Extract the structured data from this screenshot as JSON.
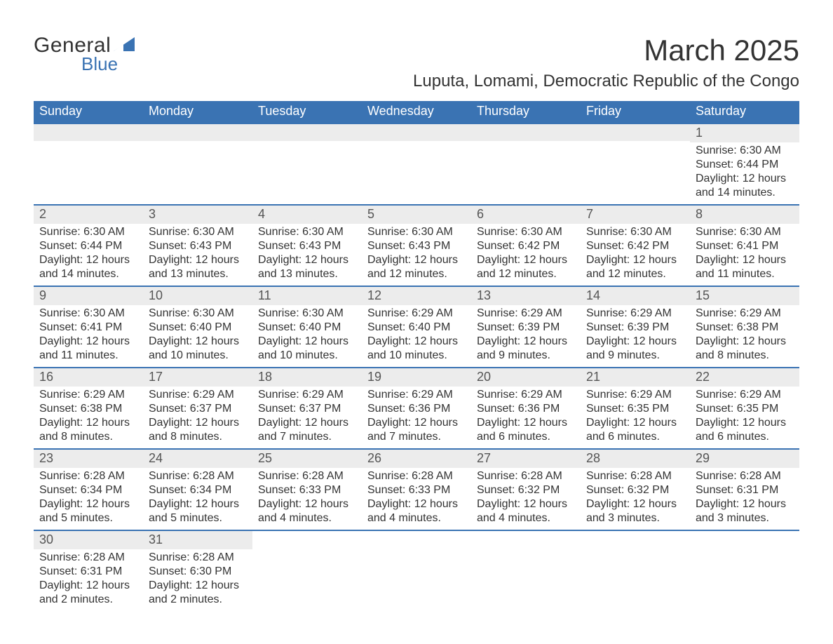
{
  "brand": {
    "word1": "General",
    "word2": "Blue",
    "accent_color": "#3a73b3",
    "text_color": "#333333"
  },
  "header": {
    "month_title": "March 2025",
    "location": "Luputa, Lomami, Democratic Republic of the Congo"
  },
  "calendar": {
    "header_bg": "#3a73b3",
    "header_text_color": "#ffffff",
    "row_border_color": "#3a73b3",
    "daynum_bg": "#ececec",
    "body_bg": "#ffffff",
    "text_color": "#333333",
    "weekday_fontsize": 18,
    "daynum_fontsize": 18,
    "body_fontsize": 16,
    "weekdays": [
      "Sunday",
      "Monday",
      "Tuesday",
      "Wednesday",
      "Thursday",
      "Friday",
      "Saturday"
    ],
    "weeks": [
      [
        {
          "n": "",
          "sunrise": "",
          "sunset": "",
          "daylight1": "",
          "daylight2": ""
        },
        {
          "n": "",
          "sunrise": "",
          "sunset": "",
          "daylight1": "",
          "daylight2": ""
        },
        {
          "n": "",
          "sunrise": "",
          "sunset": "",
          "daylight1": "",
          "daylight2": ""
        },
        {
          "n": "",
          "sunrise": "",
          "sunset": "",
          "daylight1": "",
          "daylight2": ""
        },
        {
          "n": "",
          "sunrise": "",
          "sunset": "",
          "daylight1": "",
          "daylight2": ""
        },
        {
          "n": "",
          "sunrise": "",
          "sunset": "",
          "daylight1": "",
          "daylight2": ""
        },
        {
          "n": "1",
          "sunrise": "Sunrise: 6:30 AM",
          "sunset": "Sunset: 6:44 PM",
          "daylight1": "Daylight: 12 hours",
          "daylight2": "and 14 minutes."
        }
      ],
      [
        {
          "n": "2",
          "sunrise": "Sunrise: 6:30 AM",
          "sunset": "Sunset: 6:44 PM",
          "daylight1": "Daylight: 12 hours",
          "daylight2": "and 14 minutes."
        },
        {
          "n": "3",
          "sunrise": "Sunrise: 6:30 AM",
          "sunset": "Sunset: 6:43 PM",
          "daylight1": "Daylight: 12 hours",
          "daylight2": "and 13 minutes."
        },
        {
          "n": "4",
          "sunrise": "Sunrise: 6:30 AM",
          "sunset": "Sunset: 6:43 PM",
          "daylight1": "Daylight: 12 hours",
          "daylight2": "and 13 minutes."
        },
        {
          "n": "5",
          "sunrise": "Sunrise: 6:30 AM",
          "sunset": "Sunset: 6:43 PM",
          "daylight1": "Daylight: 12 hours",
          "daylight2": "and 12 minutes."
        },
        {
          "n": "6",
          "sunrise": "Sunrise: 6:30 AM",
          "sunset": "Sunset: 6:42 PM",
          "daylight1": "Daylight: 12 hours",
          "daylight2": "and 12 minutes."
        },
        {
          "n": "7",
          "sunrise": "Sunrise: 6:30 AM",
          "sunset": "Sunset: 6:42 PM",
          "daylight1": "Daylight: 12 hours",
          "daylight2": "and 12 minutes."
        },
        {
          "n": "8",
          "sunrise": "Sunrise: 6:30 AM",
          "sunset": "Sunset: 6:41 PM",
          "daylight1": "Daylight: 12 hours",
          "daylight2": "and 11 minutes."
        }
      ],
      [
        {
          "n": "9",
          "sunrise": "Sunrise: 6:30 AM",
          "sunset": "Sunset: 6:41 PM",
          "daylight1": "Daylight: 12 hours",
          "daylight2": "and 11 minutes."
        },
        {
          "n": "10",
          "sunrise": "Sunrise: 6:30 AM",
          "sunset": "Sunset: 6:40 PM",
          "daylight1": "Daylight: 12 hours",
          "daylight2": "and 10 minutes."
        },
        {
          "n": "11",
          "sunrise": "Sunrise: 6:30 AM",
          "sunset": "Sunset: 6:40 PM",
          "daylight1": "Daylight: 12 hours",
          "daylight2": "and 10 minutes."
        },
        {
          "n": "12",
          "sunrise": "Sunrise: 6:29 AM",
          "sunset": "Sunset: 6:40 PM",
          "daylight1": "Daylight: 12 hours",
          "daylight2": "and 10 minutes."
        },
        {
          "n": "13",
          "sunrise": "Sunrise: 6:29 AM",
          "sunset": "Sunset: 6:39 PM",
          "daylight1": "Daylight: 12 hours",
          "daylight2": "and 9 minutes."
        },
        {
          "n": "14",
          "sunrise": "Sunrise: 6:29 AM",
          "sunset": "Sunset: 6:39 PM",
          "daylight1": "Daylight: 12 hours",
          "daylight2": "and 9 minutes."
        },
        {
          "n": "15",
          "sunrise": "Sunrise: 6:29 AM",
          "sunset": "Sunset: 6:38 PM",
          "daylight1": "Daylight: 12 hours",
          "daylight2": "and 8 minutes."
        }
      ],
      [
        {
          "n": "16",
          "sunrise": "Sunrise: 6:29 AM",
          "sunset": "Sunset: 6:38 PM",
          "daylight1": "Daylight: 12 hours",
          "daylight2": "and 8 minutes."
        },
        {
          "n": "17",
          "sunrise": "Sunrise: 6:29 AM",
          "sunset": "Sunset: 6:37 PM",
          "daylight1": "Daylight: 12 hours",
          "daylight2": "and 8 minutes."
        },
        {
          "n": "18",
          "sunrise": "Sunrise: 6:29 AM",
          "sunset": "Sunset: 6:37 PM",
          "daylight1": "Daylight: 12 hours",
          "daylight2": "and 7 minutes."
        },
        {
          "n": "19",
          "sunrise": "Sunrise: 6:29 AM",
          "sunset": "Sunset: 6:36 PM",
          "daylight1": "Daylight: 12 hours",
          "daylight2": "and 7 minutes."
        },
        {
          "n": "20",
          "sunrise": "Sunrise: 6:29 AM",
          "sunset": "Sunset: 6:36 PM",
          "daylight1": "Daylight: 12 hours",
          "daylight2": "and 6 minutes."
        },
        {
          "n": "21",
          "sunrise": "Sunrise: 6:29 AM",
          "sunset": "Sunset: 6:35 PM",
          "daylight1": "Daylight: 12 hours",
          "daylight2": "and 6 minutes."
        },
        {
          "n": "22",
          "sunrise": "Sunrise: 6:29 AM",
          "sunset": "Sunset: 6:35 PM",
          "daylight1": "Daylight: 12 hours",
          "daylight2": "and 6 minutes."
        }
      ],
      [
        {
          "n": "23",
          "sunrise": "Sunrise: 6:28 AM",
          "sunset": "Sunset: 6:34 PM",
          "daylight1": "Daylight: 12 hours",
          "daylight2": "and 5 minutes."
        },
        {
          "n": "24",
          "sunrise": "Sunrise: 6:28 AM",
          "sunset": "Sunset: 6:34 PM",
          "daylight1": "Daylight: 12 hours",
          "daylight2": "and 5 minutes."
        },
        {
          "n": "25",
          "sunrise": "Sunrise: 6:28 AM",
          "sunset": "Sunset: 6:33 PM",
          "daylight1": "Daylight: 12 hours",
          "daylight2": "and 4 minutes."
        },
        {
          "n": "26",
          "sunrise": "Sunrise: 6:28 AM",
          "sunset": "Sunset: 6:33 PM",
          "daylight1": "Daylight: 12 hours",
          "daylight2": "and 4 minutes."
        },
        {
          "n": "27",
          "sunrise": "Sunrise: 6:28 AM",
          "sunset": "Sunset: 6:32 PM",
          "daylight1": "Daylight: 12 hours",
          "daylight2": "and 4 minutes."
        },
        {
          "n": "28",
          "sunrise": "Sunrise: 6:28 AM",
          "sunset": "Sunset: 6:32 PM",
          "daylight1": "Daylight: 12 hours",
          "daylight2": "and 3 minutes."
        },
        {
          "n": "29",
          "sunrise": "Sunrise: 6:28 AM",
          "sunset": "Sunset: 6:31 PM",
          "daylight1": "Daylight: 12 hours",
          "daylight2": "and 3 minutes."
        }
      ],
      [
        {
          "n": "30",
          "sunrise": "Sunrise: 6:28 AM",
          "sunset": "Sunset: 6:31 PM",
          "daylight1": "Daylight: 12 hours",
          "daylight2": "and 2 minutes."
        },
        {
          "n": "31",
          "sunrise": "Sunrise: 6:28 AM",
          "sunset": "Sunset: 6:30 PM",
          "daylight1": "Daylight: 12 hours",
          "daylight2": "and 2 minutes."
        },
        {
          "n": "",
          "sunrise": "",
          "sunset": "",
          "daylight1": "",
          "daylight2": ""
        },
        {
          "n": "",
          "sunrise": "",
          "sunset": "",
          "daylight1": "",
          "daylight2": ""
        },
        {
          "n": "",
          "sunrise": "",
          "sunset": "",
          "daylight1": "",
          "daylight2": ""
        },
        {
          "n": "",
          "sunrise": "",
          "sunset": "",
          "daylight1": "",
          "daylight2": ""
        },
        {
          "n": "",
          "sunrise": "",
          "sunset": "",
          "daylight1": "",
          "daylight2": ""
        }
      ]
    ]
  }
}
